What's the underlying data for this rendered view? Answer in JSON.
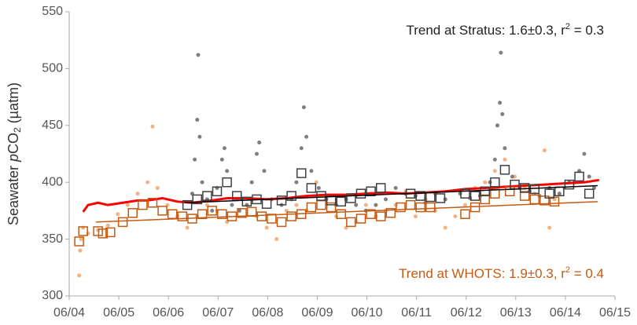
{
  "chart_data": {
    "type": "scatter",
    "ylabel": {
      "pre": "Seawater ",
      "ital": "p",
      "mid": "CO",
      "sub": "2",
      "post": " (µatm)"
    },
    "annotations": [
      {
        "text": "Trend at Stratus: 1.6±0.3, r",
        "sup": "2",
        "tail": " = 0.3",
        "color": "#222222"
      },
      {
        "text": "Trend at WHOTS: 1.9±0.3, r",
        "sup": "2",
        "tail": " = 0.4",
        "color": "#c55a11"
      }
    ],
    "xlim": [
      2004.42,
      2015.42
    ],
    "ylim": [
      300,
      550
    ],
    "xticks": [
      {
        "value": 2004.42,
        "label": "06/04"
      },
      {
        "value": 2005.42,
        "label": "06/05"
      },
      {
        "value": 2006.42,
        "label": "06/06"
      },
      {
        "value": 2007.42,
        "label": "06/07"
      },
      {
        "value": 2008.42,
        "label": "06/08"
      },
      {
        "value": 2009.42,
        "label": "06/09"
      },
      {
        "value": 2010.42,
        "label": "06/10"
      },
      {
        "value": 2011.42,
        "label": "06/11"
      },
      {
        "value": 2012.42,
        "label": "06/12"
      },
      {
        "value": 2013.42,
        "label": "06/13"
      },
      {
        "value": 2014.42,
        "label": "06/14"
      },
      {
        "value": 2015.42,
        "label": "06/15"
      }
    ],
    "yticks": [
      300,
      350,
      400,
      450,
      500,
      550
    ],
    "series": [
      {
        "kind": "points",
        "color": "#f4b183",
        "x": [
          2004.62,
          2004.64,
          2004.66,
          2004.7,
          2004.8,
          2005.0,
          2005.2,
          2005.4,
          2005.6,
          2005.8,
          2006.0,
          2006.1,
          2006.2,
          2006.4,
          2006.6,
          2006.8,
          2007.0,
          2007.2,
          2007.4,
          2007.6,
          2007.8,
          2008.0,
          2008.2,
          2008.4,
          2008.6,
          2008.8,
          2009.0,
          2009.2,
          2009.4,
          2009.6,
          2009.8,
          2010.0,
          2010.2,
          2010.4,
          2010.6,
          2010.8,
          2011.0,
          2011.2,
          2011.4,
          2011.6,
          2011.8,
          2012.0,
          2012.2,
          2012.4,
          2012.6,
          2012.8,
          2013.0,
          2013.2,
          2013.4,
          2013.6,
          2013.8,
          2014.0,
          2014.1,
          2014.2,
          2014.4,
          2014.6
        ],
        "values": [
          318,
          340,
          350,
          360,
          355,
          358,
          362,
          372,
          380,
          390,
          400,
          449,
          395,
          380,
          370,
          360,
          370,
          380,
          375,
          365,
          385,
          380,
          370,
          360,
          350,
          375,
          380,
          375,
          400,
          385,
          370,
          360,
          365,
          380,
          370,
          375,
          380,
          392,
          370,
          385,
          375,
          360,
          370,
          380,
          395,
          400,
          410,
          420,
          405,
          395,
          390,
          428,
          360,
          385,
          395,
          400
        ]
      },
      {
        "kind": "points",
        "color": "#7f7f7f",
        "x": [
          2006.9,
          2006.95,
          2007.0,
          2007.02,
          2007.05,
          2007.1,
          2007.2,
          2007.3,
          2007.4,
          2007.5,
          2007.55,
          2007.6,
          2007.7,
          2007.85,
          2008.0,
          2008.1,
          2008.2,
          2008.25,
          2008.35,
          2008.5,
          2008.7,
          2008.9,
          2009.0,
          2009.1,
          2009.15,
          2009.2,
          2009.3,
          2009.45,
          2009.6,
          2009.8,
          2010.0,
          2010.2,
          2010.4,
          2010.6,
          2010.8,
          2011.0,
          2011.2,
          2011.4,
          2011.6,
          2011.8,
          2012.0,
          2012.3,
          2012.5,
          2012.7,
          2012.9,
          2013.0,
          2013.05,
          2013.1,
          2013.12,
          2013.15,
          2013.2,
          2013.35,
          2013.5,
          2013.7,
          2013.9,
          2014.1,
          2014.3,
          2014.5,
          2014.7,
          2014.8,
          2014.9,
          2015.0
        ],
        "values": [
          390,
          420,
          455,
          512,
          440,
          400,
          385,
          375,
          395,
          420,
          430,
          410,
          380,
          375,
          380,
          400,
          425,
          435,
          410,
          385,
          380,
          385,
          400,
          430,
          466,
          440,
          410,
          395,
          385,
          380,
          385,
          380,
          375,
          380,
          385,
          395,
          390,
          388,
          382,
          390,
          385,
          390,
          386,
          388,
          400,
          420,
          450,
          470,
          514,
          460,
          430,
          405,
          395,
          392,
          388,
          395,
          390,
          400,
          410,
          425,
          405,
          395
        ]
      },
      {
        "kind": "line",
        "color": "#ff0000",
        "width": 3,
        "x": [
          2004.7,
          2004.8,
          2005.0,
          2005.2,
          2005.5,
          2005.8,
          2006.0,
          2006.3,
          2006.6,
          2006.9,
          2007.3,
          2007.6,
          2008.0,
          2008.4,
          2008.8,
          2009.2,
          2009.6,
          2010.0,
          2010.4,
          2010.8,
          2011.2,
          2011.6,
          2012.0,
          2012.4,
          2012.8,
          2013.2,
          2013.6,
          2014.0,
          2014.4,
          2014.8,
          2015.1
        ],
        "values": [
          374,
          380,
          382,
          380,
          382,
          384,
          384,
          386,
          383,
          382,
          384,
          386,
          386,
          385,
          386,
          388,
          389,
          389,
          390,
          391,
          390,
          391,
          392,
          394,
          395,
          396,
          397,
          398,
          399,
          400,
          402
        ]
      },
      {
        "kind": "squares",
        "color": "#c55a11",
        "x": [
          2004.62,
          2004.7,
          2005.0,
          2005.1,
          2005.25,
          2005.5,
          2005.7,
          2005.9,
          2006.1,
          2006.3,
          2006.5,
          2006.7,
          2006.9,
          2007.1,
          2007.3,
          2007.5,
          2007.7,
          2007.9,
          2008.1,
          2008.3,
          2008.5,
          2008.7,
          2008.9,
          2009.1,
          2009.3,
          2009.5,
          2009.7,
          2009.9,
          2010.1,
          2010.3,
          2010.5,
          2010.7,
          2010.9,
          2011.1,
          2011.3,
          2011.5,
          2011.7,
          2012.4,
          2012.6,
          2012.8,
          2013.0,
          2013.3,
          2013.6,
          2013.8,
          2014.0,
          2014.2
        ],
        "values": [
          348,
          357,
          357,
          355,
          356,
          365,
          373,
          380,
          382,
          375,
          372,
          370,
          368,
          372,
          375,
          372,
          370,
          373,
          374,
          370,
          368,
          365,
          370,
          372,
          378,
          380,
          378,
          372,
          365,
          368,
          372,
          370,
          373,
          378,
          380,
          378,
          378,
          372,
          378,
          385,
          390,
          392,
          388,
          385,
          384,
          383
        ]
      },
      {
        "kind": "squares",
        "color": "#404040",
        "x": [
          2006.8,
          2007.0,
          2007.2,
          2007.4,
          2007.6,
          2007.8,
          2008.0,
          2008.2,
          2008.4,
          2008.7,
          2008.9,
          2009.1,
          2009.3,
          2009.5,
          2009.7,
          2009.9,
          2010.1,
          2010.3,
          2010.5,
          2010.7,
          2011.3,
          2011.5,
          2011.7,
          2011.9,
          2012.4,
          2012.6,
          2012.8,
          2013.0,
          2013.2,
          2013.4,
          2013.6,
          2013.8,
          2014.1,
          2014.3,
          2014.5,
          2014.7,
          2014.9
        ],
        "values": [
          380,
          385,
          388,
          392,
          400,
          388,
          383,
          385,
          381,
          384,
          388,
          408,
          395,
          388,
          384,
          383,
          386,
          390,
          392,
          395,
          390,
          388,
          387,
          386,
          390,
          388,
          392,
          400,
          411,
          398,
          395,
          394,
          390,
          392,
          398,
          405,
          390
        ]
      },
      {
        "kind": "line",
        "color": "#000000",
        "width": 1.5,
        "x": [
          2006.75,
          2015.07
        ],
        "values": [
          382,
          397
        ]
      },
      {
        "kind": "line",
        "color": "#c55a11",
        "width": 1.5,
        "x": [
          2004.96,
          2015.07
        ],
        "values": [
          365,
          383
        ]
      }
    ]
  }
}
